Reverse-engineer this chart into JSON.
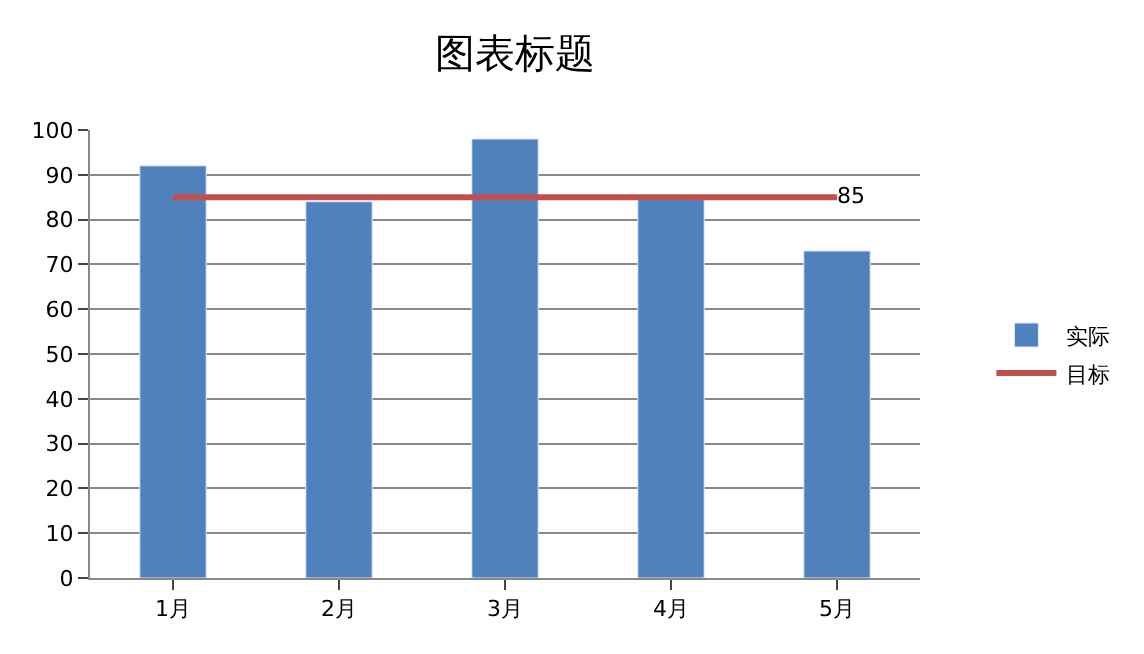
{
  "chart_data": {
    "type": "bar",
    "title": "图表标题",
    "categories": [
      "1月",
      "2月",
      "3月",
      "4月",
      "5月"
    ],
    "series": [
      {
        "name": "实际",
        "color": "#4f81bd",
        "values": [
          92,
          84,
          98,
          85,
          73
        ]
      },
      {
        "name": "目标",
        "type": "line",
        "color": "#c0504d",
        "values": [
          85,
          85,
          85,
          85,
          85
        ],
        "value_labels": [
          null,
          null,
          null,
          null,
          "85"
        ]
      }
    ],
    "ylim": [
      0,
      100
    ],
    "yticks": [
      0,
      10,
      20,
      30,
      40,
      50,
      60,
      70,
      80,
      90,
      100
    ],
    "grid": "y",
    "legend": "right",
    "marker": "none"
  }
}
